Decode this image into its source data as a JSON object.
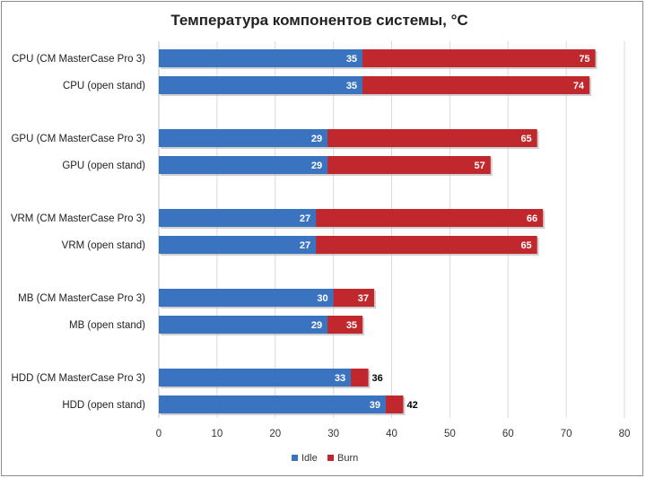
{
  "chart_data": {
    "type": "bar",
    "orientation": "horizontal",
    "stacking": "overlay",
    "title": "Температура компонентов системы, °C",
    "categories": [
      "CPU (CM MasterCase  Pro 3)",
      "CPU (open stand)",
      "GPU (CM MasterCase  Pro 3)",
      "GPU (open stand)",
      "VRM (CM MasterCase  Pro 3)",
      "VRM (open stand)",
      "MB (CM MasterCase  Pro 3)",
      "MB (open stand)",
      "HDD (CM MasterCase  Pro 3)",
      "HDD (open stand)"
    ],
    "series": [
      {
        "name": "Idle",
        "color": "#3a74c1",
        "values": [
          35,
          35,
          29,
          29,
          27,
          27,
          30,
          29,
          33,
          39
        ]
      },
      {
        "name": "Burn",
        "color": "#c0282d",
        "values": [
          75,
          74,
          65,
          57,
          66,
          65,
          37,
          35,
          36,
          42
        ]
      }
    ],
    "xlim": [
      0,
      80
    ],
    "xticks": [
      0,
      10,
      20,
      30,
      40,
      50,
      60,
      70,
      80
    ],
    "grid": "vertical",
    "legend_position": "bottom"
  }
}
